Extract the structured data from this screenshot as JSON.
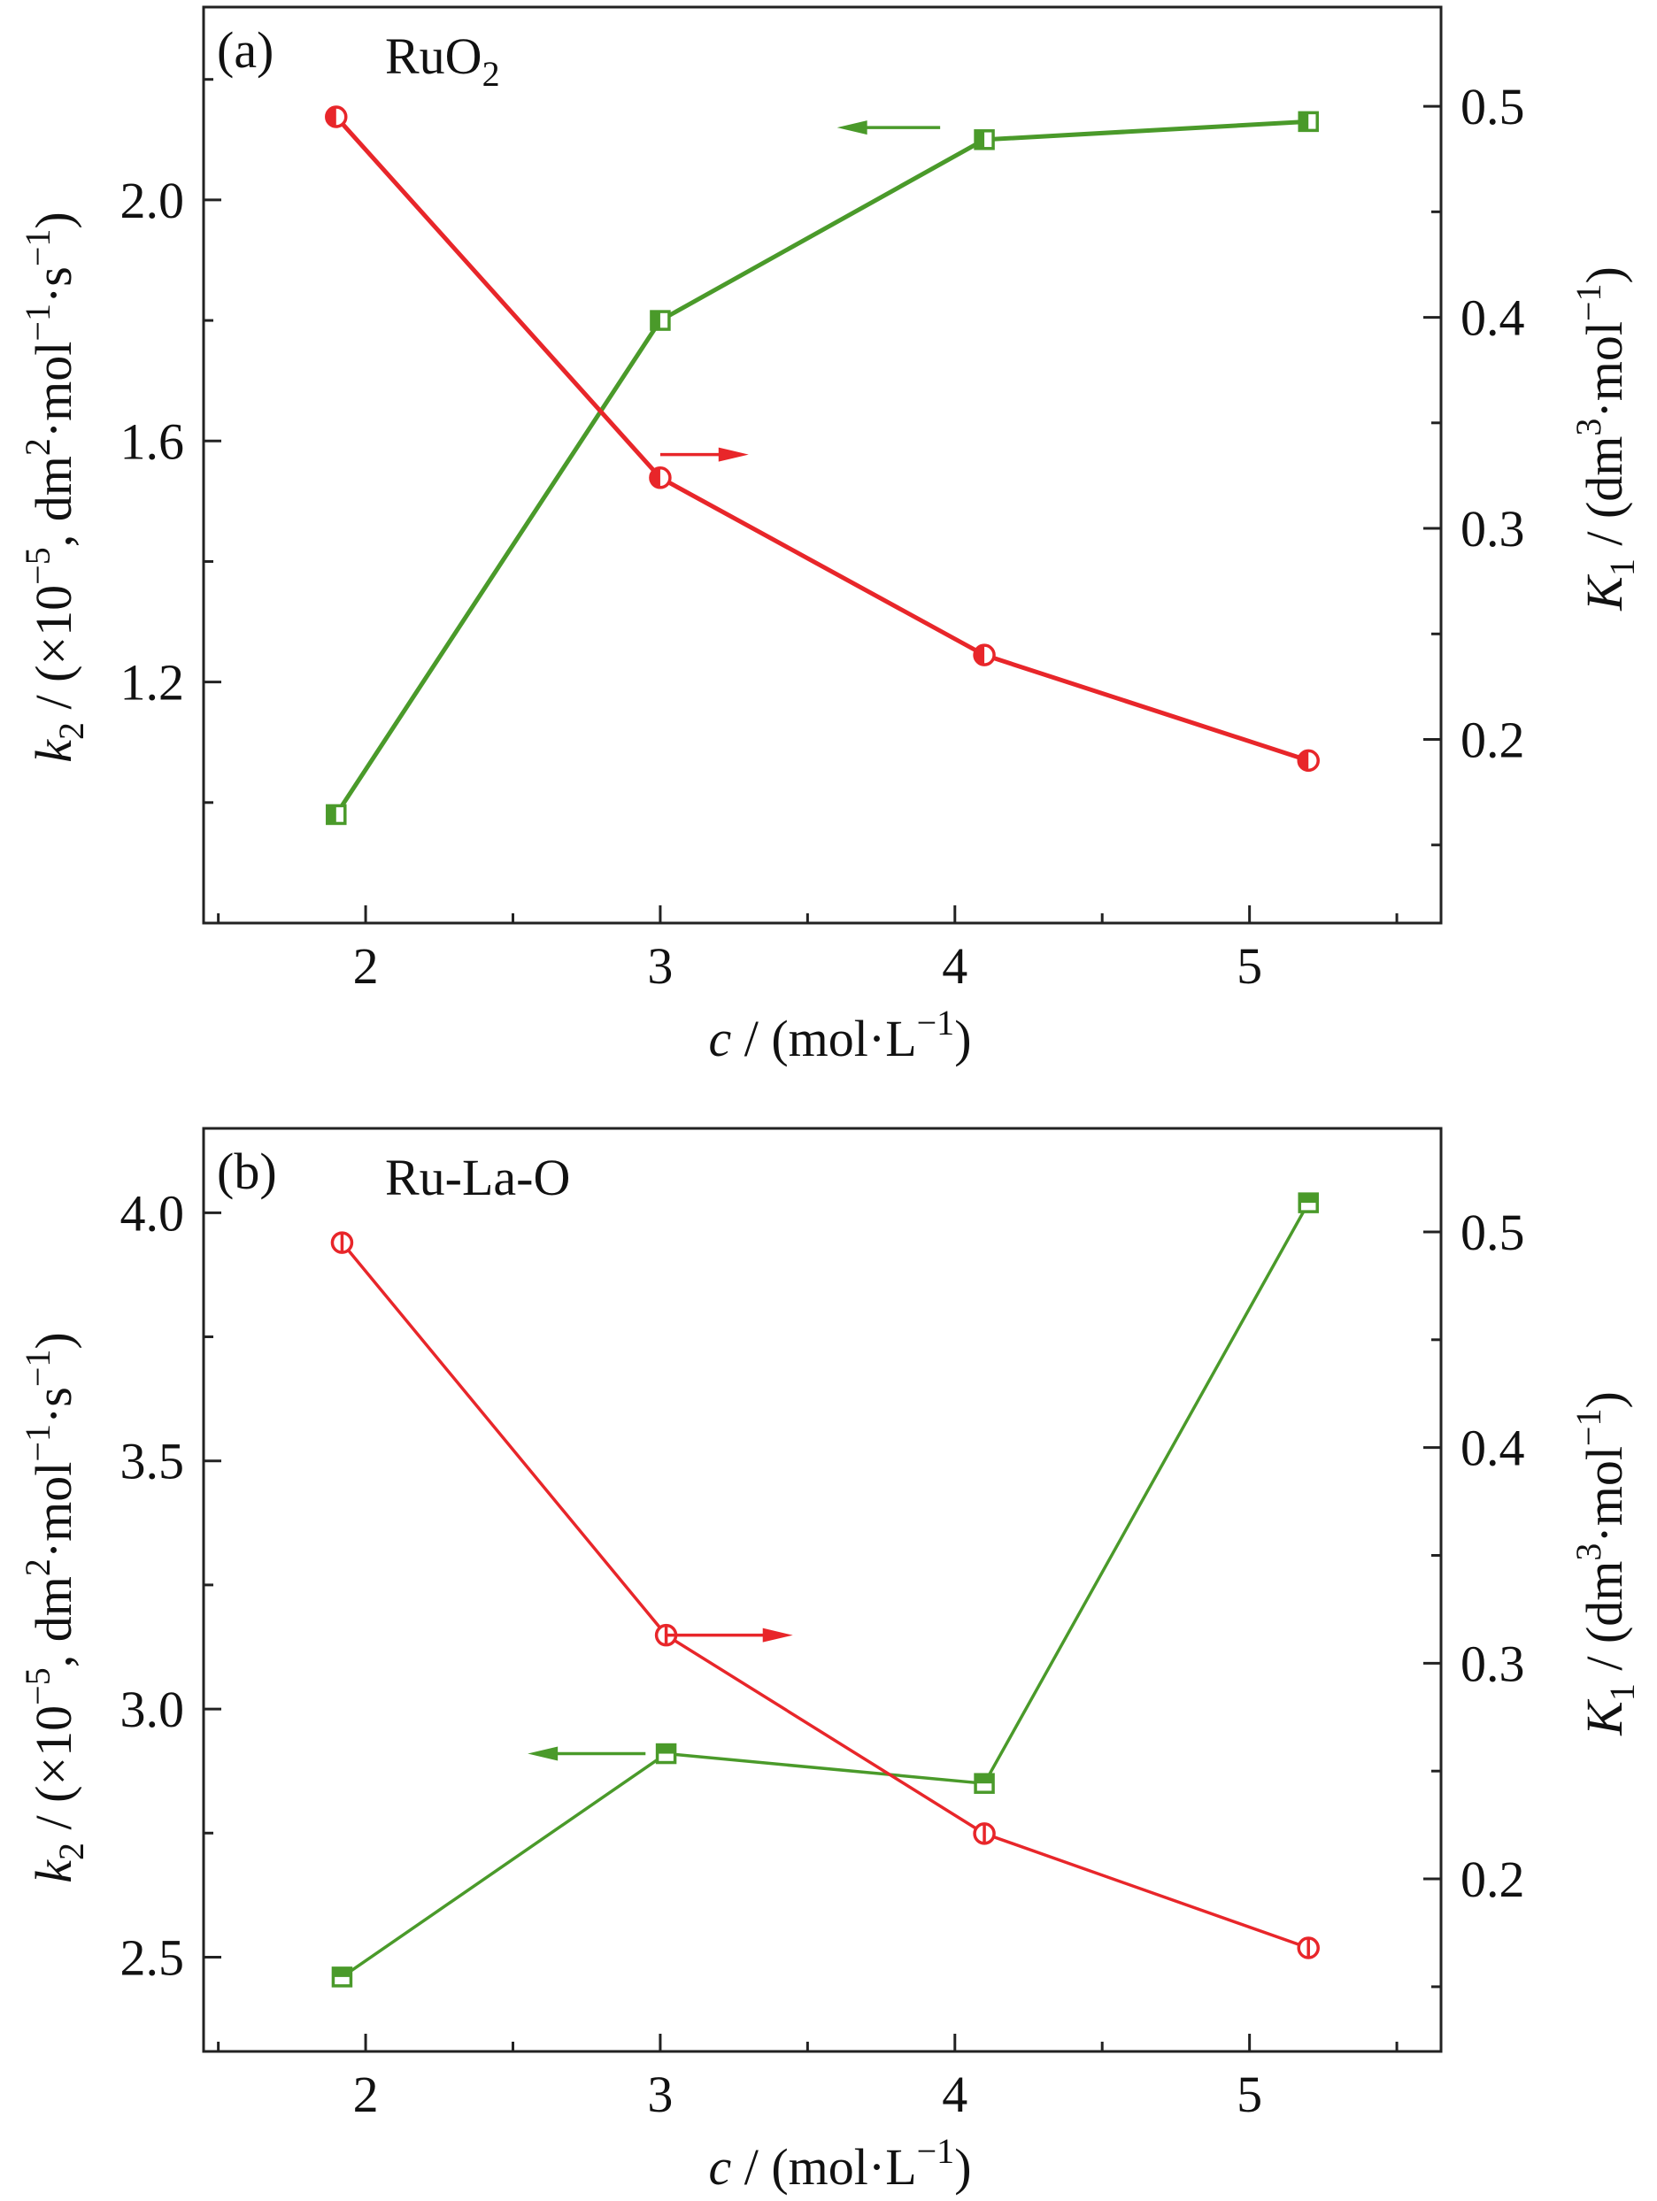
{
  "colors": {
    "k2_series": "#4a9a2a",
    "K1_series": "#e8262a",
    "axis": "#222222"
  },
  "chart_data": [
    {
      "panel_label": "(a)",
      "material_label": "RuO",
      "material_subscript": "2",
      "type": "line",
      "x_axis": {
        "label_var": "c",
        "label_unit": "/ (mol·L",
        "label_exp": "−1",
        "label_close": ")",
        "range": [
          1.45,
          5.65
        ],
        "ticks": [
          2,
          3,
          4,
          5
        ],
        "tick_labels": [
          "2",
          "3",
          "4",
          "5"
        ]
      },
      "y_left": {
        "label_var": "k",
        "label_sub": "2",
        "label_text1": " / (×10",
        "label_exp1": "−5",
        "label_text2": ", dm",
        "label_exp2": "2",
        "label_text3": "·mol",
        "label_exp3": "−1",
        "label_text4": "·s",
        "label_exp4": "−1",
        "label_text5": ")",
        "range": [
          0.8,
          2.32
        ],
        "ticks": [
          1.2,
          1.6,
          2.0
        ],
        "tick_labels": [
          "1.2",
          "1.6",
          "2.0"
        ]
      },
      "y_right": {
        "label_var": "K",
        "label_sub": "1",
        "label_text1": " / (dm",
        "label_exp1": "3",
        "label_text2": "·mol",
        "label_exp2": "−1",
        "label_text3": ")",
        "range": [
          0.113,
          0.547
        ],
        "ticks": [
          0.2,
          0.3,
          0.4,
          0.5
        ],
        "tick_labels": [
          "0.2",
          "0.3",
          "0.4",
          "0.5"
        ]
      },
      "series": [
        {
          "axis": "left",
          "marker": "square",
          "x": [
            1.9,
            3.0,
            4.1,
            5.2
          ],
          "values": [
            0.98,
            1.8,
            2.1,
            2.13
          ]
        },
        {
          "axis": "right",
          "marker": "circle",
          "x": [
            1.9,
            3.0,
            4.1,
            5.2
          ],
          "values": [
            0.495,
            0.324,
            0.24,
            0.19
          ]
        }
      ],
      "annotations": [
        {
          "type": "arrow",
          "series": 0,
          "direction": "left",
          "x_from": 3.95,
          "x_to": 3.6,
          "y": 2.12,
          "axis": "left"
        },
        {
          "type": "arrow",
          "series": 1,
          "direction": "right",
          "x_from": 3.0,
          "x_to": 3.3,
          "y": 0.335,
          "axis": "right"
        }
      ]
    },
    {
      "panel_label": "(b)",
      "material_label": "Ru-La-O",
      "material_subscript": "",
      "type": "line",
      "x_axis": {
        "label_var": "c",
        "label_unit": "/ (mol·L",
        "label_exp": "−1",
        "label_close": ")",
        "range": [
          1.45,
          5.65
        ],
        "ticks": [
          2,
          3,
          4,
          5
        ],
        "tick_labels": [
          "2",
          "3",
          "4",
          "5"
        ]
      },
      "y_left": {
        "label_var": "k",
        "label_sub": "2",
        "label_text1": " / (×10",
        "label_exp1": "−5",
        "label_text2": ", dm",
        "label_exp2": "2",
        "label_text3": "·mol",
        "label_exp3": "−1",
        "label_text4": "·s",
        "label_exp4": "−1",
        "label_text5": ")",
        "range": [
          2.31,
          4.17
        ],
        "ticks": [
          2.5,
          3.0,
          3.5,
          4.0
        ],
        "tick_labels": [
          "2.5",
          "3.0",
          "3.5",
          "4.0"
        ]
      },
      "y_right": {
        "label_var": "K",
        "label_sub": "1",
        "label_text1": " / (dm",
        "label_exp1": "3",
        "label_text2": "·mol",
        "label_exp2": "−1",
        "label_text3": ")",
        "range": [
          0.12,
          0.548
        ],
        "ticks": [
          0.2,
          0.3,
          0.4,
          0.5
        ],
        "tick_labels": [
          "0.2",
          "0.3",
          "0.4",
          "0.5"
        ]
      },
      "series": [
        {
          "axis": "left",
          "marker": "square",
          "x": [
            1.92,
            3.02,
            4.1,
            5.2
          ],
          "values": [
            2.46,
            2.91,
            2.85,
            4.02
          ]
        },
        {
          "axis": "right",
          "marker": "circle",
          "x": [
            1.92,
            3.02,
            4.1,
            5.2
          ],
          "values": [
            0.495,
            0.313,
            0.221,
            0.168
          ]
        }
      ],
      "annotations": [
        {
          "type": "arrow",
          "series": 0,
          "direction": "left",
          "x_from": 2.95,
          "x_to": 2.55,
          "y": 2.91,
          "axis": "left"
        },
        {
          "type": "arrow",
          "series": 1,
          "direction": "right",
          "x_from": 3.02,
          "x_to": 3.45,
          "y": 0.313,
          "axis": "right"
        }
      ]
    }
  ]
}
